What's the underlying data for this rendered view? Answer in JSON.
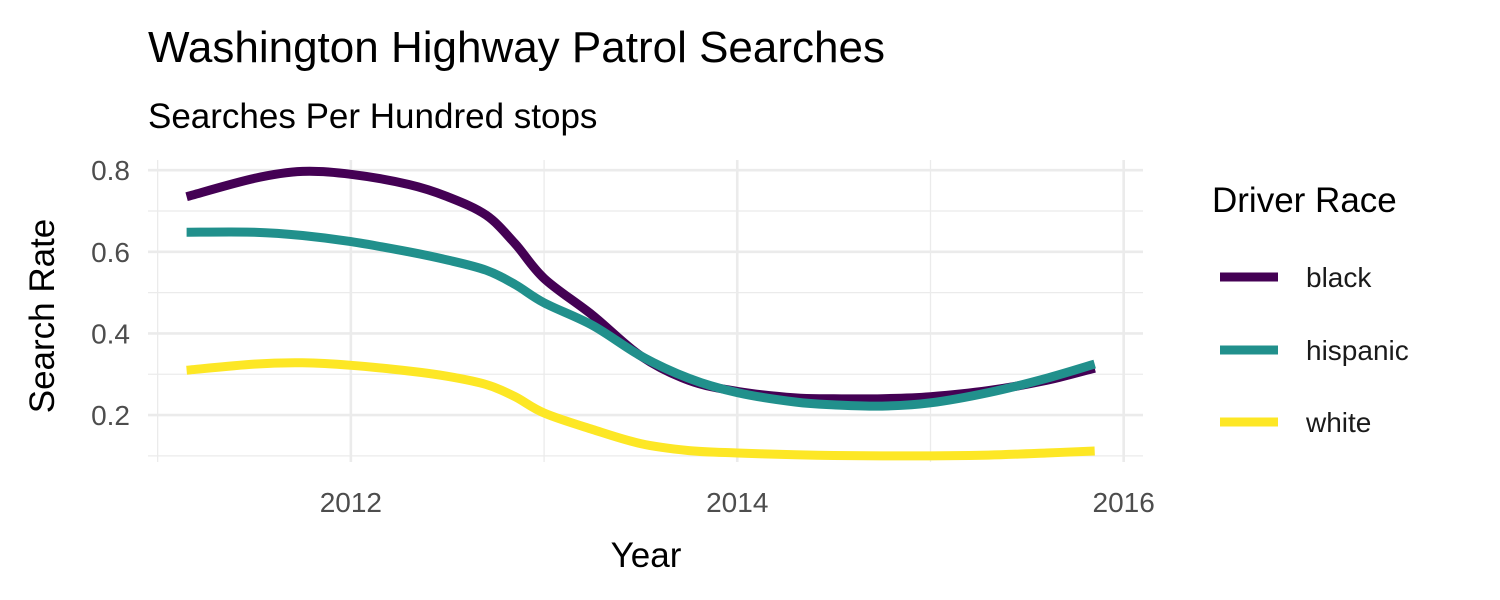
{
  "chart_data": {
    "type": "line",
    "title": "Washington Highway Patrol Searches",
    "subtitle": "Searches Per Hundred stops",
    "xlabel": "Year",
    "ylabel": "Search Rate",
    "xlim": [
      2010.95,
      2016.1
    ],
    "ylim": [
      0.085,
      0.825
    ],
    "x_ticks": [
      2012,
      2014,
      2016
    ],
    "y_ticks": [
      0.2,
      0.4,
      0.6,
      0.8
    ],
    "y_tick_labels": [
      "0.2",
      "0.4",
      "0.6",
      "0.8"
    ],
    "grid": true,
    "legend": {
      "title": "Driver Race",
      "position": "right"
    },
    "series": [
      {
        "name": "black",
        "color": "#440154",
        "x": [
          2011.15,
          2011.5,
          2011.75,
          2012.0,
          2012.3,
          2012.5,
          2012.7,
          2012.85,
          2013.0,
          2013.25,
          2013.5,
          2013.75,
          2014.0,
          2014.3,
          2014.5,
          2014.75,
          2015.0,
          2015.3,
          2015.6,
          2015.85
        ],
        "values": [
          0.735,
          0.78,
          0.797,
          0.79,
          0.765,
          0.735,
          0.69,
          0.62,
          0.535,
          0.445,
          0.345,
          0.285,
          0.258,
          0.242,
          0.24,
          0.24,
          0.245,
          0.26,
          0.285,
          0.315
        ]
      },
      {
        "name": "hispanic",
        "color": "#21908C",
        "x": [
          2011.15,
          2011.5,
          2011.75,
          2012.0,
          2012.3,
          2012.5,
          2012.7,
          2012.85,
          2013.0,
          2013.25,
          2013.5,
          2013.75,
          2014.0,
          2014.3,
          2014.5,
          2014.75,
          2015.0,
          2015.3,
          2015.6,
          2015.85
        ],
        "values": [
          0.648,
          0.648,
          0.64,
          0.625,
          0.6,
          0.58,
          0.555,
          0.52,
          0.475,
          0.42,
          0.345,
          0.29,
          0.255,
          0.232,
          0.225,
          0.222,
          0.23,
          0.255,
          0.29,
          0.325
        ]
      },
      {
        "name": "white",
        "color": "#FDE725",
        "x": [
          2011.15,
          2011.5,
          2011.75,
          2012.0,
          2012.3,
          2012.5,
          2012.7,
          2012.85,
          2013.0,
          2013.25,
          2013.5,
          2013.75,
          2014.0,
          2014.3,
          2014.5,
          2014.75,
          2015.0,
          2015.3,
          2015.6,
          2015.85
        ],
        "values": [
          0.31,
          0.325,
          0.328,
          0.322,
          0.308,
          0.295,
          0.275,
          0.245,
          0.205,
          0.165,
          0.13,
          0.113,
          0.107,
          0.103,
          0.101,
          0.1,
          0.1,
          0.102,
          0.107,
          0.112
        ]
      }
    ]
  }
}
